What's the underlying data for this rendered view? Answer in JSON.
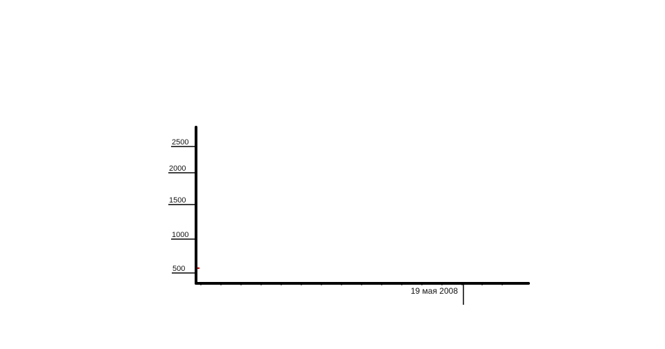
{
  "chart_data": {
    "type": "line",
    "title": "",
    "xlabel": "",
    "ylabel": "",
    "y_ticks": [
      {
        "value": 2500,
        "label": "2500"
      },
      {
        "value": 2000,
        "label": "2000"
      },
      {
        "value": 1500,
        "label": "1500"
      },
      {
        "value": 1000,
        "label": "1000"
      },
      {
        "value": 500,
        "label": "500"
      }
    ],
    "x_marker": {
      "label": "19 мая 2008"
    },
    "series": [
      {
        "color": "#cc0000",
        "points": [
          {
            "y": 500
          }
        ]
      }
    ],
    "grid": false,
    "legend": "none",
    "colors": {
      "axis": "#000000",
      "series": "#cc0000"
    }
  }
}
